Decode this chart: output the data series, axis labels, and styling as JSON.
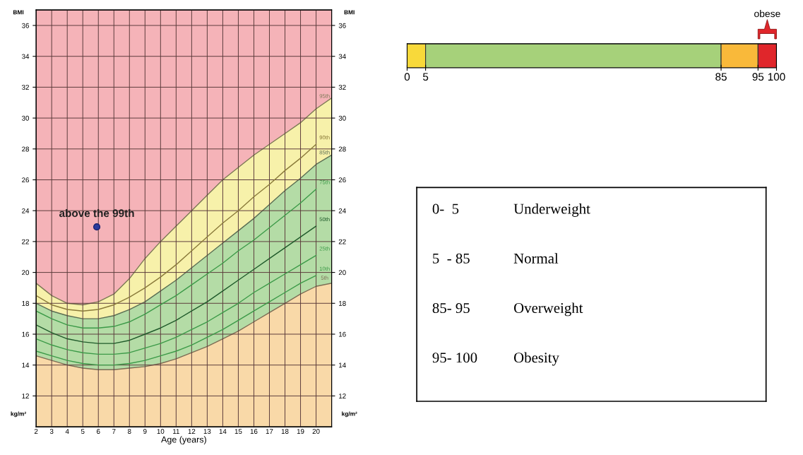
{
  "chart_data": [
    {
      "type": "line",
      "xlabel": "Age (years)",
      "ylabel": "BMI",
      "y2label": "BMI",
      "xlim": [
        2,
        21
      ],
      "xticks": [
        2,
        3,
        4,
        5,
        6,
        7,
        8,
        9,
        10,
        11,
        12,
        13,
        14,
        15,
        16,
        17,
        18,
        19,
        20
      ],
      "ylim": [
        10,
        37
      ],
      "yticks": [
        12,
        14,
        16,
        18,
        20,
        22,
        24,
        26,
        28,
        30,
        32,
        34,
        36
      ],
      "y2lim": [
        10,
        37
      ],
      "y2ticks": [
        12,
        14,
        16,
        18,
        20,
        22,
        24,
        26,
        28,
        30,
        32,
        34,
        36
      ],
      "grid": true,
      "marker": "none",
      "line_style": "solid",
      "x": [
        2,
        3,
        4,
        5,
        6,
        7,
        8,
        9,
        10,
        11,
        12,
        13,
        14,
        15,
        16,
        17,
        18,
        19,
        20
      ],
      "bands": [
        {
          "axis": "y",
          "from": 10,
          "to": 37,
          "color": "#f5b3b8"
        }
      ],
      "series": [
        {
          "type": "area",
          "color": "#f7f1aa",
          "x": [
            2,
            3,
            4,
            5,
            6,
            7,
            8,
            9,
            10,
            11,
            12,
            13,
            14,
            15,
            16,
            17,
            18,
            19,
            20,
            21
          ],
          "values": [
            19.3,
            18.5,
            18.0,
            17.9,
            18.1,
            18.6,
            19.6,
            20.9,
            22.0,
            23.0,
            24.0,
            25.0,
            26.0,
            26.8,
            27.6,
            28.3,
            29.0,
            29.7,
            30.6,
            31.3
          ]
        },
        {
          "type": "area",
          "color": "#b4dca6",
          "x": [
            2,
            3,
            4,
            5,
            6,
            7,
            8,
            9,
            10,
            11,
            12,
            13,
            14,
            15,
            16,
            17,
            18,
            19,
            20,
            21
          ],
          "values": [
            18.0,
            17.5,
            17.2,
            17.0,
            17.0,
            17.2,
            17.6,
            18.1,
            18.8,
            19.5,
            20.3,
            21.1,
            21.9,
            22.7,
            23.5,
            24.4,
            25.3,
            26.1,
            27.0,
            27.6
          ]
        },
        {
          "type": "area",
          "color": "#f9d9a8",
          "x": [
            2,
            3,
            4,
            5,
            6,
            7,
            8,
            9,
            10,
            11,
            12,
            13,
            14,
            15,
            16,
            17,
            18,
            19,
            20,
            21
          ],
          "values": [
            14.6,
            14.3,
            14.0,
            13.8,
            13.7,
            13.7,
            13.8,
            13.9,
            14.1,
            14.4,
            14.8,
            15.2,
            15.7,
            16.2,
            16.8,
            17.4,
            18.0,
            18.6,
            19.1,
            19.3
          ]
        },
        {
          "color": "#3c9a48",
          "values": [
            14.9,
            14.6,
            14.3,
            14.1,
            14.0,
            14.0,
            14.1,
            14.3,
            14.6,
            14.9,
            15.3,
            15.8,
            16.3,
            16.9,
            17.5,
            18.1,
            18.7,
            19.3,
            19.8
          ]
        },
        {
          "color": "#3c9a48",
          "values": [
            15.7,
            15.3,
            15.0,
            14.8,
            14.7,
            14.7,
            14.8,
            15.1,
            15.4,
            15.8,
            16.3,
            16.8,
            17.4,
            18.0,
            18.7,
            19.3,
            19.9,
            20.5,
            21.1
          ]
        },
        {
          "color": "#1f5a2a",
          "values": [
            16.6,
            16.1,
            15.7,
            15.5,
            15.4,
            15.4,
            15.6,
            16.0,
            16.4,
            16.9,
            17.5,
            18.1,
            18.8,
            19.5,
            20.2,
            20.9,
            21.6,
            22.3,
            23.0
          ]
        },
        {
          "color": "#3c9a48",
          "values": [
            17.5,
            17.0,
            16.6,
            16.4,
            16.4,
            16.5,
            16.8,
            17.3,
            17.9,
            18.5,
            19.2,
            19.9,
            20.6,
            21.4,
            22.1,
            22.9,
            23.7,
            24.5,
            25.4
          ]
        },
        {
          "color": "#8a7a3a",
          "values": [
            18.5,
            17.9,
            17.6,
            17.5,
            17.6,
            17.9,
            18.4,
            19.0,
            19.7,
            20.5,
            21.4,
            22.3,
            23.2,
            24.0,
            24.9,
            25.7,
            26.6,
            27.4,
            28.3
          ]
        },
        {
          "type": "scatter",
          "marker": "circle",
          "color": "#2b3d9e",
          "x": [
            5.9
          ],
          "values": [
            22.95
          ]
        }
      ],
      "annotations": [
        "5th",
        "10th",
        "25th",
        "50th",
        "75th",
        "85th",
        "90th",
        "95th",
        {
          "text": "above the 99th",
          "x": 5.9,
          "y": 22.95
        },
        "kg/m²",
        "kg/m²"
      ]
    },
    {
      "type": "bar",
      "orientation": "horizontal",
      "stacked": true,
      "categories": [
        null
      ],
      "xlim": [
        0,
        100
      ],
      "xticks": [
        0,
        5,
        85,
        95,
        100
      ],
      "tick_labels": "x",
      "series": [
        {
          "color": "#f8d93a",
          "values": [
            5
          ]
        },
        {
          "color": "#a6d17a",
          "values": [
            80
          ]
        },
        {
          "color": "#f9b93a",
          "values": [
            10
          ]
        },
        {
          "color": "#e0262b",
          "values": [
            5
          ]
        }
      ],
      "annotations": [
        "obese"
      ]
    },
    {
      "type": "other",
      "annotations": [
        "0-  5",
        "Underweight",
        "5  - 85",
        "Normal",
        "85- 95",
        "Overweight",
        "95- 100",
        "Obesity"
      ]
    }
  ]
}
